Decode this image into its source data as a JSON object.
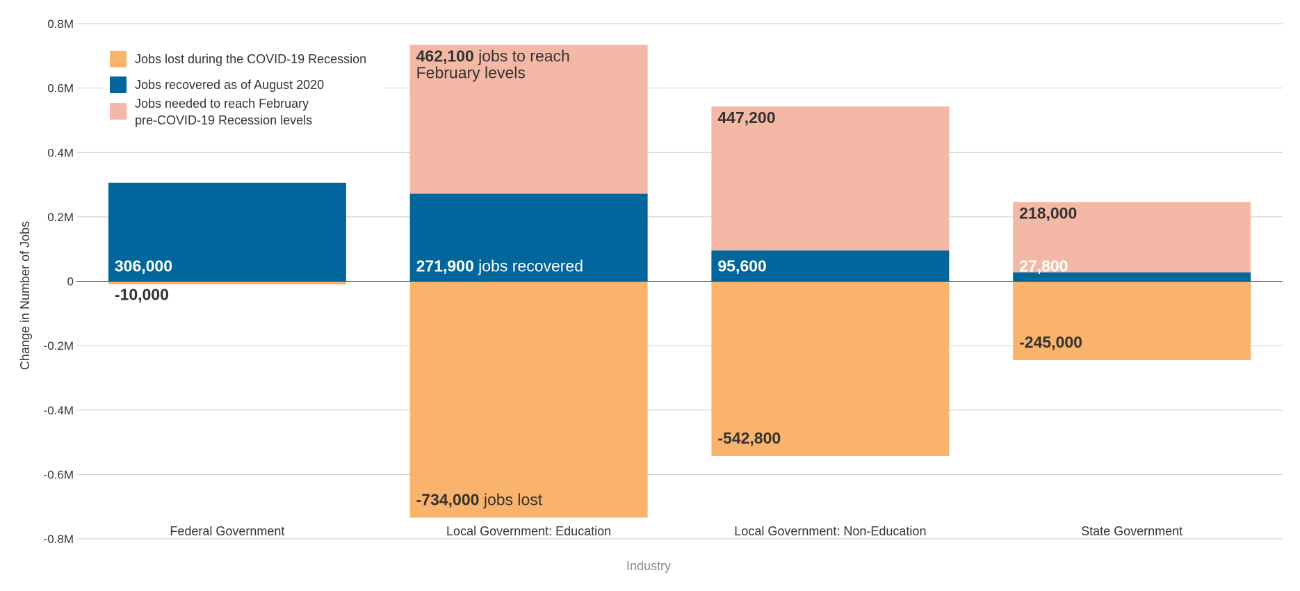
{
  "chart_data": {
    "type": "bar",
    "stacked": true,
    "xlabel": "Industry",
    "ylabel": "Change in Number of Jobs",
    "ylim": [
      -800000,
      800000
    ],
    "yticks": [
      {
        "value": 800000,
        "label": "0.8M"
      },
      {
        "value": 600000,
        "label": "0.6M"
      },
      {
        "value": 400000,
        "label": "0.4M"
      },
      {
        "value": 200000,
        "label": "0.2M"
      },
      {
        "value": 0,
        "label": "0"
      },
      {
        "value": -200000,
        "label": "-0.2M"
      },
      {
        "value": -400000,
        "label": "-0.4M"
      },
      {
        "value": -600000,
        "label": "-0.6M"
      },
      {
        "value": -800000,
        "label": "-0.8M"
      }
    ],
    "grid": true,
    "legend_position": "top-left",
    "categories": [
      "Federal Government",
      "Local Government: Education",
      "Local Government: Non-Education",
      "State Government"
    ],
    "series": [
      {
        "name": "Jobs lost during the COVID-19 Recession",
        "color": "#f9b36c",
        "values": [
          -10000,
          -734000,
          -542800,
          -245000
        ],
        "labels": [
          "-10,000",
          "-734,000",
          "-542,800",
          "-245,000"
        ],
        "label_suffix": [
          "",
          "jobs lost",
          "",
          ""
        ]
      },
      {
        "name": "Jobs recovered as of August 2020",
        "color": "#01669b",
        "values": [
          306000,
          271900,
          95600,
          27800
        ],
        "labels": [
          "306,000",
          "271,900",
          "95,600",
          "27,800"
        ],
        "label_suffix": [
          "",
          "jobs recovered",
          "",
          ""
        ]
      },
      {
        "name": "Jobs needed to reach February pre-COVID-19 Recession levels",
        "legend_lines": [
          "Jobs needed to reach February",
          "pre-COVID-19 Recession levels"
        ],
        "color": "#f4b8a6",
        "values": [
          0,
          462100,
          447200,
          218000
        ],
        "labels": [
          "",
          "462,100",
          "447,200",
          "218,000"
        ],
        "label_suffix": [
          "",
          "jobs to reach",
          "",
          ""
        ],
        "label_suffix_line2": [
          "",
          "February levels",
          "",
          ""
        ]
      }
    ]
  }
}
